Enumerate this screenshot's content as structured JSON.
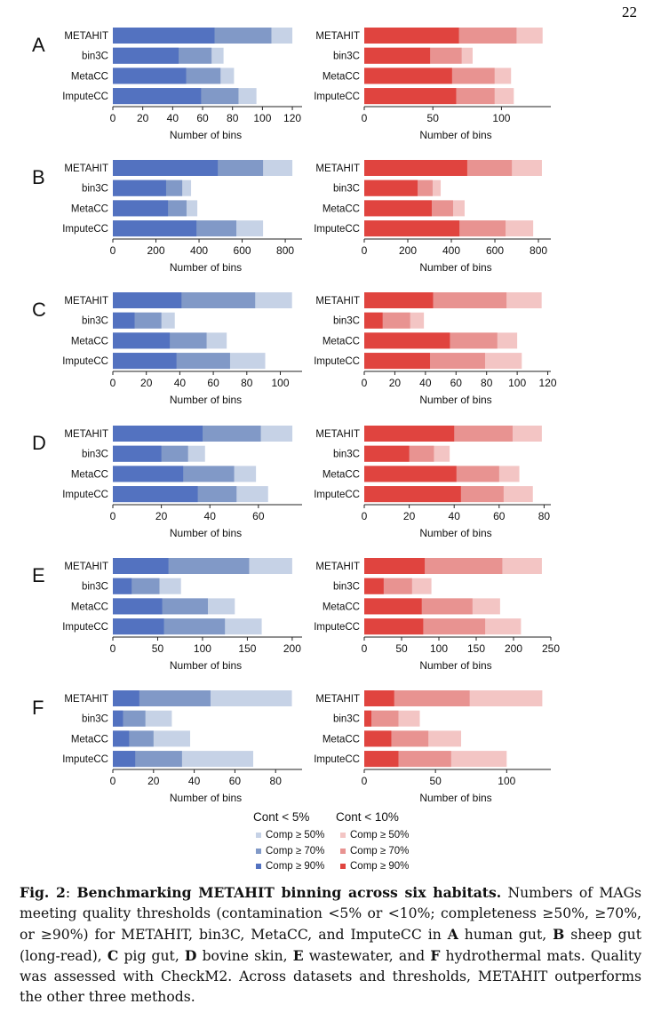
{
  "colors": {
    "left": [
      "#c6d2e6",
      "#8199c7",
      "#5372c0"
    ],
    "right": [
      "#f3c5c4",
      "#e89391",
      "#e0443f"
    ]
  },
  "chart_data": {
    "type": "bar",
    "orientation": "horizontal-stacked",
    "categories": [
      "METAHIT",
      "bin3C",
      "MetaCC",
      "ImputeCC"
    ],
    "xlabel": "Number of bins",
    "series_names_left": [
      "Comp ≥ 50%",
      "Comp ≥ 70%",
      "Comp ≥ 90%"
    ],
    "series_names_right": [
      "Comp ≥ 50%",
      "Comp ≥ 70%",
      "Comp ≥ 90%"
    ],
    "panels": [
      {
        "letter": "A",
        "left": {
          "xlim": [
            0,
            126.5
          ],
          "ticks": [
            "0",
            "20",
            "40",
            "60",
            "80",
            "100",
            "120"
          ],
          "tickvals": [
            0,
            20,
            40,
            60,
            80,
            100,
            120
          ],
          "comp50": [
            120,
            74,
            81,
            96
          ],
          "comp70": [
            106,
            66,
            72,
            84
          ],
          "comp90": [
            68,
            44,
            49,
            59
          ]
        },
        "right": {
          "xlim": [
            0,
            136
          ],
          "ticks": [
            "0",
            "50",
            "100"
          ],
          "tickvals": [
            0,
            50,
            100
          ],
          "comp50": [
            130,
            79,
            107,
            109
          ],
          "comp70": [
            111,
            71,
            95,
            95
          ],
          "comp90": [
            69,
            48,
            64,
            67
          ]
        }
      },
      {
        "letter": "B",
        "left": {
          "xlim": [
            0,
            878
          ],
          "ticks": [
            "0",
            "200",
            "400",
            "600",
            "800"
          ],
          "tickvals": [
            0,
            200,
            400,
            600,
            800
          ],
          "comp50": [
            833,
            363,
            392,
            697
          ],
          "comp70": [
            697,
            322,
            342,
            573
          ],
          "comp90": [
            487,
            247,
            256,
            388
          ]
        },
        "right": {
          "xlim": [
            0,
            857
          ],
          "ticks": [
            "0",
            "200",
            "400",
            "600",
            "800"
          ],
          "tickvals": [
            0,
            200,
            400,
            600,
            800
          ],
          "comp50": [
            816,
            351,
            461,
            776
          ],
          "comp70": [
            678,
            314,
            408,
            649
          ],
          "comp90": [
            473,
            245,
            310,
            437
          ]
        }
      },
      {
        "letter": "C",
        "left": {
          "xlim": [
            0,
            113
          ],
          "ticks": [
            "0",
            "20",
            "40",
            "60",
            "80",
            "100"
          ],
          "tickvals": [
            0,
            20,
            40,
            60,
            80,
            100
          ],
          "comp50": [
            107,
            37,
            68,
            91
          ],
          "comp70": [
            85,
            29,
            56,
            70
          ],
          "comp90": [
            41,
            13,
            34,
            38
          ]
        },
        "right": {
          "xlim": [
            0,
            122
          ],
          "ticks": [
            "0",
            "20",
            "40",
            "60",
            "80",
            "100",
            "120"
          ],
          "tickvals": [
            0,
            20,
            40,
            60,
            80,
            100,
            120
          ],
          "comp50": [
            116,
            39,
            100,
            103
          ],
          "comp70": [
            93,
            30,
            87,
            79
          ],
          "comp90": [
            45,
            12,
            56,
            43
          ]
        }
      },
      {
        "letter": "D",
        "left": {
          "xlim": [
            0,
            78
          ],
          "ticks": [
            "0",
            "20",
            "40",
            "60"
          ],
          "tickvals": [
            0,
            20,
            40,
            60
          ],
          "comp50": [
            74,
            38,
            59,
            64
          ],
          "comp70": [
            61,
            31,
            50,
            51
          ],
          "comp90": [
            37,
            20,
            29,
            35
          ]
        },
        "right": {
          "xlim": [
            0,
            83
          ],
          "ticks": [
            "0",
            "20",
            "40",
            "60",
            "80"
          ],
          "tickvals": [
            0,
            20,
            40,
            60,
            80
          ],
          "comp50": [
            79,
            38,
            69,
            75
          ],
          "comp70": [
            66,
            31,
            60,
            62
          ],
          "comp90": [
            40,
            20,
            41,
            43
          ]
        }
      },
      {
        "letter": "E",
        "left": {
          "xlim": [
            0,
            211
          ],
          "ticks": [
            "0",
            "50",
            "100",
            "150",
            "200"
          ],
          "tickvals": [
            0,
            50,
            100,
            150,
            200
          ],
          "comp50": [
            200,
            76,
            136,
            166
          ],
          "comp70": [
            152,
            52,
            106,
            125
          ],
          "comp90": [
            62,
            21,
            55,
            57
          ]
        },
        "right": {
          "xlim": [
            0,
            250
          ],
          "ticks": [
            "0",
            "50",
            "100",
            "150",
            "200",
            "250"
          ],
          "tickvals": [
            0,
            50,
            100,
            150,
            200,
            250
          ],
          "comp50": [
            238,
            90,
            182,
            210
          ],
          "comp70": [
            185,
            64,
            145,
            162
          ],
          "comp90": [
            81,
            26,
            77,
            79
          ]
        }
      },
      {
        "letter": "F",
        "left": {
          "xlim": [
            0,
            93
          ],
          "ticks": [
            "0",
            "20",
            "40",
            "60",
            "80"
          ],
          "tickvals": [
            0,
            20,
            40,
            60,
            80
          ],
          "comp50": [
            88,
            29,
            38,
            69
          ],
          "comp70": [
            48,
            16,
            20,
            34
          ],
          "comp90": [
            13,
            5,
            8,
            11
          ]
        },
        "right": {
          "xlim": [
            0,
            131
          ],
          "ticks": [
            "0",
            "50",
            "100"
          ],
          "tickvals": [
            0,
            50,
            100
          ],
          "comp50": [
            125,
            39,
            68,
            100
          ],
          "comp70": [
            74,
            24,
            45,
            61
          ],
          "comp90": [
            21,
            5,
            19,
            24
          ]
        }
      }
    ]
  },
  "legend": {
    "left_title": "Cont < 5%",
    "right_title": "Cont < 10%",
    "items": [
      "Comp ≥ 50%",
      "Comp ≥ 70%",
      "Comp ≥ 90%"
    ]
  },
  "caption": {
    "segments": [
      {
        "t": "Fig. 2",
        "b": true
      },
      {
        "t": ": ",
        "b": false
      },
      {
        "t": "Benchmarking METAHIT binning across six habitats.",
        "b": true
      },
      {
        "t": " Numbers of MAGs meeting quality thresholds (contamination <5% or <10%; completeness ≥50%, ≥70%, or ≥90%) for METAHIT, bin3C, MetaCC, and ImputeCC in ",
        "b": false
      },
      {
        "t": "A",
        "b": true
      },
      {
        "t": " human gut, ",
        "b": false
      },
      {
        "t": "B",
        "b": true
      },
      {
        "t": " sheep gut (long-read), ",
        "b": false
      },
      {
        "t": "C",
        "b": true
      },
      {
        "t": " pig gut, ",
        "b": false
      },
      {
        "t": "D",
        "b": true
      },
      {
        "t": " bovine skin, ",
        "b": false
      },
      {
        "t": "E",
        "b": true
      },
      {
        "t": " wastewater, and ",
        "b": false
      },
      {
        "t": "F",
        "b": true
      },
      {
        "t": " hydrothermal mats. Quality was assessed with CheckM2. Across datasets and thresholds, METAHIT outperforms the other three methods.",
        "b": false
      }
    ]
  },
  "page_number": "22"
}
